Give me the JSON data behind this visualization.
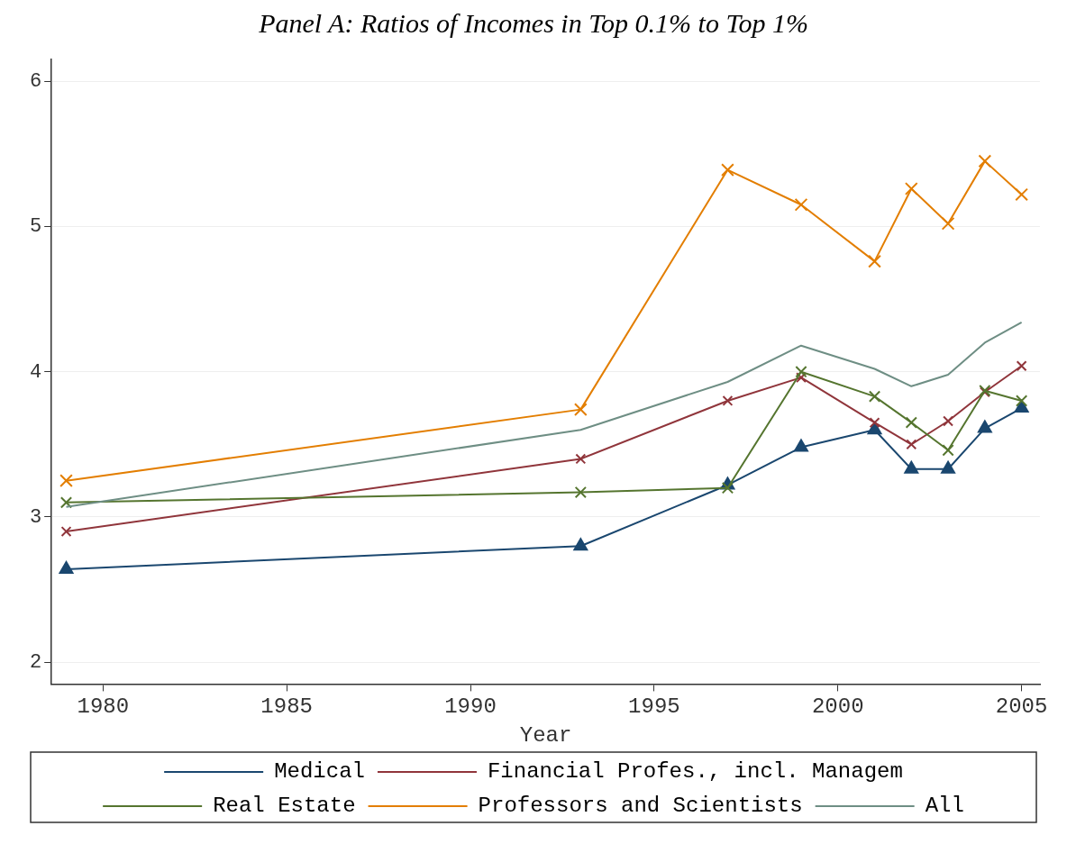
{
  "chart_data": {
    "type": "line",
    "title": "Panel A: Ratios of Incomes in Top 0.1% to Top 1%",
    "xlabel": "Year",
    "x": [
      1979,
      1993,
      1997,
      1999,
      2001,
      2002,
      2003,
      2004,
      2005
    ],
    "xlim": [
      1978.6,
      2005.5
    ],
    "xticks": [
      1980,
      1985,
      1990,
      1995,
      2000,
      2005
    ],
    "ylim": [
      1.85,
      6.15
    ],
    "yticks": [
      2,
      3,
      4,
      5,
      6
    ],
    "grid": "y",
    "legend": "bottom",
    "series": [
      {
        "name": "Medical",
        "color": "#1a476f",
        "marker": "triangle",
        "values": [
          2.64,
          2.8,
          3.22,
          3.48,
          3.6,
          3.33,
          3.33,
          3.61,
          3.75
        ]
      },
      {
        "name": "Financial Profes., incl. Managem",
        "color": "#90353b",
        "marker": "cross",
        "values": [
          2.9,
          3.4,
          3.8,
          3.96,
          3.65,
          3.5,
          3.66,
          3.86,
          4.04
        ]
      },
      {
        "name": "Real Estate",
        "color": "#55752f",
        "marker": "cross",
        "values": [
          3.1,
          3.17,
          3.2,
          4.0,
          3.83,
          3.65,
          3.46,
          3.87,
          3.8
        ]
      },
      {
        "name": "Professors and Scientists",
        "color": "#e37e00",
        "marker": "cross",
        "values": [
          3.25,
          3.74,
          5.39,
          5.15,
          4.76,
          5.26,
          5.02,
          5.45,
          5.22
        ]
      },
      {
        "name": "All",
        "color": "#6e8e84",
        "marker": "none",
        "values": [
          3.07,
          3.6,
          3.93,
          4.18,
          4.02,
          3.9,
          3.98,
          4.2,
          4.34
        ]
      }
    ]
  }
}
